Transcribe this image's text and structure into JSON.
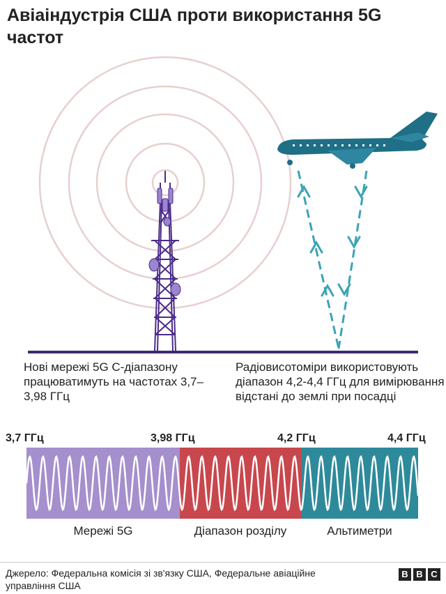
{
  "title": "Авіаіндустрія США проти використання 5G частот",
  "captions": {
    "left": "Нові мережі 5G C-діапазону працюватимуть на частотах 3,7–3,98 ГГц",
    "right": "Радіовисотоміри використовують діапазон 4,2-4,4 ГГц для вимірювання відстані до землі при посадці"
  },
  "frequencies": [
    "3,7 ГГц",
    "3,98 ГГц",
    "4,2 ГГц",
    "4,4 ГГц"
  ],
  "bands": [
    {
      "label": "Мережі 5G",
      "color": "#a58fcc"
    },
    {
      "label": "Діапазон розділу",
      "color": "#c8474d"
    },
    {
      "label": "Альтиметри",
      "color": "#2e8a9a"
    }
  ],
  "colors": {
    "tower": "#4a2c8a",
    "rings": "#e8cfcf",
    "ground": "#3d2b6e",
    "plane": "#1f6f86",
    "signal": "#3aa3b8"
  },
  "footer": {
    "source": "Джерело: Федеральна комісія зі зв'язку США, Федеральне авіаційне управління США",
    "logo": [
      "B",
      "B",
      "C"
    ]
  }
}
